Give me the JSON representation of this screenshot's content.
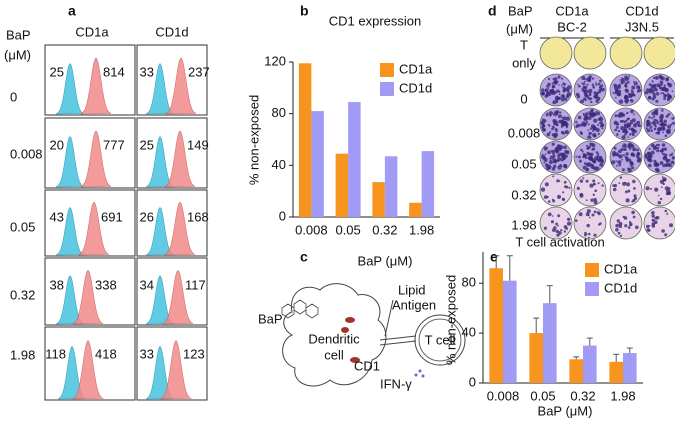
{
  "panel_a": {
    "label": "a",
    "unit_line1": "BaP",
    "unit_line2": "(μM)",
    "columns": [
      "CD1a",
      "CD1d"
    ],
    "rows": [
      {
        "label": "0",
        "cells": [
          [
            25,
            814
          ],
          [
            33,
            237
          ]
        ]
      },
      {
        "label": "0.008",
        "cells": [
          [
            20,
            777
          ],
          [
            25,
            149
          ]
        ]
      },
      {
        "label": "0.05",
        "cells": [
          [
            43,
            691
          ],
          [
            26,
            168
          ]
        ]
      },
      {
        "label": "0.32",
        "cells": [
          [
            38,
            338
          ],
          [
            34,
            117
          ]
        ]
      },
      {
        "label": "1.98",
        "cells": [
          [
            118,
            418
          ],
          [
            33,
            123
          ]
        ]
      }
    ]
  },
  "panel_c": {
    "label": "c",
    "title": "BaP (μM)",
    "lipid": "Lipid",
    "antigen": "Antigen",
    "bap": "BaP",
    "dendritic": "Dendritic",
    "cell": "cell",
    "cd1": "CD1",
    "t_cell": "T cell",
    "ifn": "IFN-γ"
  },
  "panel_d": {
    "label": "d",
    "unit_line1": "BaP",
    "unit_line2": "(μM)",
    "columns": [
      [
        "CD1a",
        "BC-2"
      ],
      [
        "CD1d",
        "J3N.5"
      ]
    ],
    "rows": [
      [
        "T",
        "only"
      ],
      [
        "0"
      ],
      [
        "0.008"
      ],
      [
        "0.05"
      ],
      [
        "0.32"
      ],
      [
        "1.98"
      ]
    ]
  },
  "chart_data": [
    {
      "type": "bar",
      "panel_label": "b",
      "title": "CD1 expression",
      "ylabel": "% non-exposed",
      "categories": [
        "0.008",
        "0.05",
        "0.32",
        "1.98"
      ],
      "series": [
        {
          "name": "CD1a",
          "color": "#f7941d",
          "values": [
            119,
            49,
            27,
            11
          ]
        },
        {
          "name": "CD1d",
          "color": "#a29bf5",
          "values": [
            82,
            89,
            47,
            51
          ]
        }
      ],
      "ylim": [
        0,
        120
      ],
      "yticks": [
        0,
        40,
        80,
        120
      ],
      "legend": "upper-right"
    },
    {
      "type": "bar",
      "panel_label": "e",
      "title": "T cell activation",
      "ylabel": "% non-exposed",
      "xlabel": "BaP (μM)",
      "categories": [
        "0.008",
        "0.05",
        "0.32",
        "1.98"
      ],
      "series": [
        {
          "name": "CD1a",
          "color": "#f7941d",
          "values": [
            92,
            40,
            19,
            17
          ],
          "errors": [
            10,
            12,
            2,
            6
          ]
        },
        {
          "name": "CD1d",
          "color": "#a29bf5",
          "values": [
            82,
            64,
            30,
            24
          ],
          "errors": [
            20,
            14,
            6,
            4
          ]
        }
      ],
      "ylim": [
        0,
        105
      ],
      "yticks": [
        0,
        40,
        80
      ],
      "legend": "upper-right"
    }
  ]
}
